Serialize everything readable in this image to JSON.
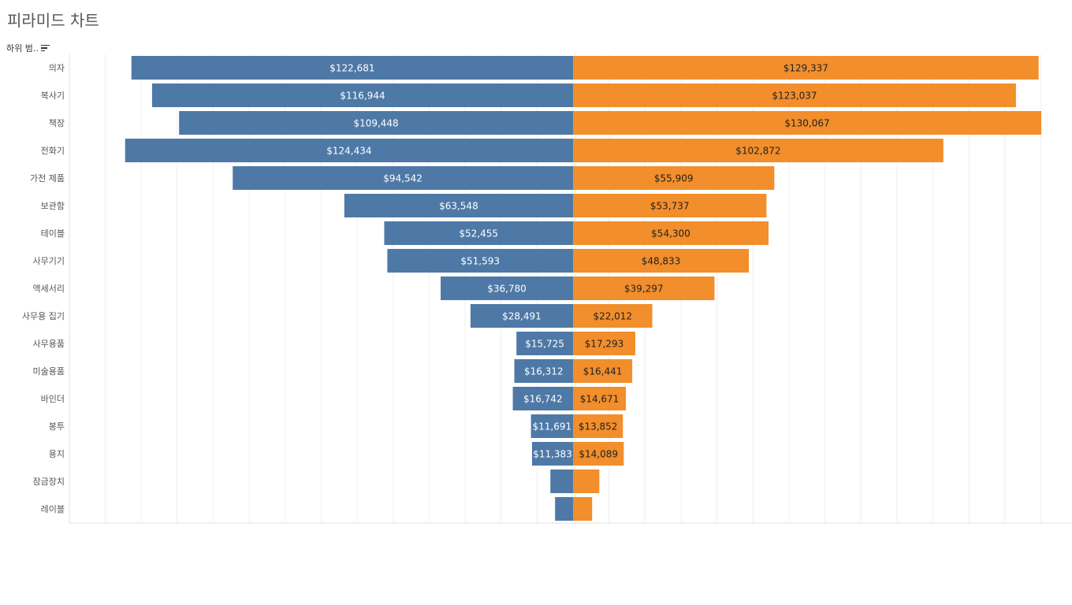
{
  "page": {
    "title": "피라미드 차트"
  },
  "dimension_header": {
    "label": "하위 범..",
    "sort_icon": "sort-descending-icon"
  },
  "colors": {
    "left_series": "#4e79a7",
    "right_series": "#f28e2b",
    "grid": "#efefef",
    "axis": "#e0e0e0"
  },
  "chart_data": {
    "type": "bar",
    "orientation": "horizontal-diverging",
    "title": "피라미드 차트",
    "xlabel": "",
    "ylabel": "하위 범..",
    "categories": [
      "의자",
      "복사기",
      "책장",
      "전화기",
      "가전 제품",
      "보관함",
      "테이블",
      "사무기기",
      "액세서리",
      "사무용 집기",
      "사무용품",
      "미술용품",
      "바인더",
      "봉투",
      "용지",
      "잠금장치",
      "레이블"
    ],
    "series": [
      {
        "side": "left",
        "values": [
          122681,
          116944,
          109448,
          124434,
          94542,
          63548,
          52455,
          51593,
          36780,
          28491,
          15725,
          16312,
          16742,
          11691,
          11383,
          6300,
          5000
        ],
        "labels": [
          "$122,681",
          "$116,944",
          "$109,448",
          "$124,434",
          "$94,542",
          "$63,548",
          "$52,455",
          "$51,593",
          "$36,780",
          "$28,491",
          "$15,725",
          "$16,312",
          "$16,742",
          "$11,691",
          "$11,383",
          "",
          ""
        ]
      },
      {
        "side": "right",
        "values": [
          129337,
          123037,
          130067,
          102872,
          55909,
          53737,
          54300,
          48833,
          39297,
          22012,
          17293,
          16441,
          14671,
          13852,
          14089,
          7300,
          5300
        ],
        "labels": [
          "$129,337",
          "$123,037",
          "$130,067",
          "$102,872",
          "$55,909",
          "$53,737",
          "$54,300",
          "$48,833",
          "$39,297",
          "$22,012",
          "$17,293",
          "$16,441",
          "$14,671",
          "$13,852",
          "$14,089",
          "",
          ""
        ]
      }
    ],
    "xlim": [
      -140000,
      140000
    ],
    "grid": true,
    "grid_step": 10000,
    "legend": "none"
  }
}
